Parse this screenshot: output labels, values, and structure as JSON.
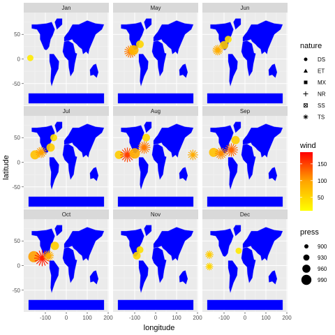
{
  "chart_data": {
    "type": "faceted-map",
    "xlabel": "longitude",
    "ylabel": "latitude",
    "x_ticks": [
      -100,
      0,
      100,
      200
    ],
    "x_tick_labels": [
      "-100",
      "0",
      "100",
      "200"
    ],
    "y_ticks": [
      50,
      0,
      -50
    ],
    "y_tick_labels": [
      "50",
      "0",
      "-50"
    ],
    "xlim": [
      -200,
      200
    ],
    "ylim": [
      -90,
      90
    ],
    "grid": true,
    "land_color": "#0000ff",
    "panel_bg": "#ebebeb",
    "strip_bg": "#d9d9d9",
    "facets": [
      {
        "label": "Jan",
        "storms": [
          {
            "lon": -172,
            "lat": 2,
            "wind": 30,
            "nature": "DS"
          }
        ]
      },
      {
        "label": "May",
        "storms": [
          {
            "lon": -120,
            "lat": 15,
            "wind": 120,
            "nature": "TS"
          },
          {
            "lon": -105,
            "lat": 18,
            "wind": 80,
            "nature": "DS"
          },
          {
            "lon": -75,
            "lat": 30,
            "wind": 50,
            "nature": "DS"
          }
        ]
      },
      {
        "label": "Jun",
        "storms": [
          {
            "lon": -130,
            "lat": 18,
            "wind": 90,
            "nature": "TS"
          },
          {
            "lon": -100,
            "lat": 28,
            "wind": 60,
            "nature": "DS"
          },
          {
            "lon": -80,
            "lat": 40,
            "wind": 40,
            "nature": "DS"
          }
        ]
      },
      {
        "label": "Jul",
        "storms": [
          {
            "lon": -150,
            "lat": 15,
            "wind": 70,
            "nature": "DS"
          },
          {
            "lon": -120,
            "lat": 20,
            "wind": 100,
            "nature": "TS"
          },
          {
            "lon": -75,
            "lat": 30,
            "wind": 60,
            "nature": "DS"
          },
          {
            "lon": -60,
            "lat": 50,
            "wind": 40,
            "nature": "ET"
          }
        ]
      },
      {
        "label": "Aug",
        "storms": [
          {
            "lon": -175,
            "lat": 15,
            "wind": 60,
            "nature": "DS"
          },
          {
            "lon": -135,
            "lat": 15,
            "wind": 150,
            "nature": "TS"
          },
          {
            "lon": -100,
            "lat": 18,
            "wind": 90,
            "nature": "DS"
          },
          {
            "lon": -55,
            "lat": 30,
            "wind": 120,
            "nature": "TS"
          },
          {
            "lon": -45,
            "lat": 50,
            "wind": 50,
            "nature": "ET"
          },
          {
            "lon": 178,
            "lat": 15,
            "wind": 90,
            "nature": "NR"
          }
        ]
      },
      {
        "label": "Sep",
        "storms": [
          {
            "lon": -150,
            "lat": 20,
            "wind": 70,
            "nature": "DS"
          },
          {
            "lon": -115,
            "lat": 18,
            "wind": 110,
            "nature": "TS"
          },
          {
            "lon": -65,
            "lat": 25,
            "wind": 130,
            "nature": "TS"
          },
          {
            "lon": -45,
            "lat": 45,
            "wind": 60,
            "nature": "ET"
          }
        ]
      },
      {
        "label": "Oct",
        "storms": [
          {
            "lon": -155,
            "lat": 18,
            "wind": 100,
            "nature": "DS"
          },
          {
            "lon": -115,
            "lat": 15,
            "wind": 170,
            "nature": "TS"
          },
          {
            "lon": -85,
            "lat": 20,
            "wind": 90,
            "nature": "TS"
          },
          {
            "lon": -55,
            "lat": 40,
            "wind": 60,
            "nature": "ET"
          }
        ]
      },
      {
        "label": "Nov",
        "storms": [
          {
            "lon": -90,
            "lat": 20,
            "wind": 50,
            "nature": "DS"
          },
          {
            "lon": -75,
            "lat": 32,
            "wind": 40,
            "nature": "DS"
          }
        ]
      },
      {
        "label": "Dec",
        "storms": [
          {
            "lon": -170,
            "lat": 22,
            "wind": 60,
            "nature": "NR"
          },
          {
            "lon": -170,
            "lat": -2,
            "wind": 50,
            "nature": "NR"
          },
          {
            "lon": -30,
            "lat": 30,
            "wind": 30,
            "nature": "DS"
          }
        ]
      }
    ],
    "legends": {
      "nature": {
        "title": "nature",
        "items": [
          "DS",
          "ET",
          "MX",
          "NR",
          "SS",
          "TS"
        ]
      },
      "wind": {
        "title": "wind",
        "ticks": [
          150,
          100,
          50
        ],
        "range": [
          10,
          185
        ],
        "colors": [
          "#ffff00",
          "#ffa500",
          "#ff0000"
        ]
      },
      "press": {
        "title": "press",
        "items": [
          900,
          930,
          960,
          990
        ]
      }
    }
  }
}
